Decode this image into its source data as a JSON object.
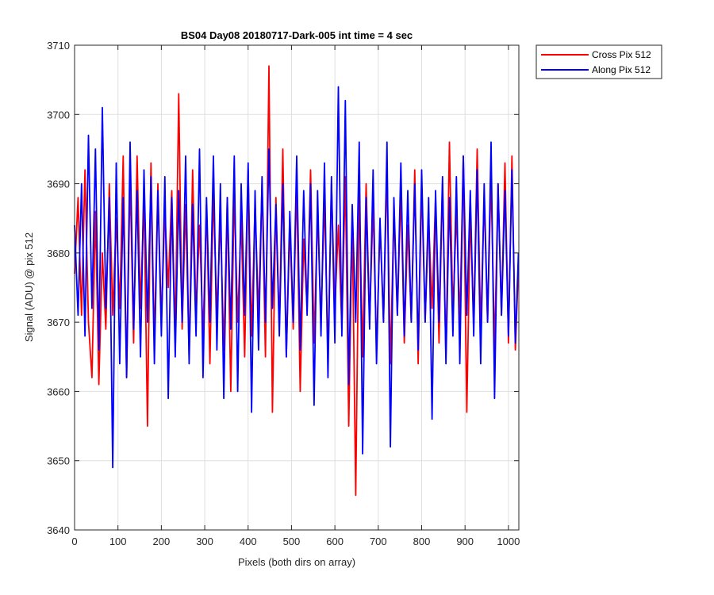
{
  "chart_data": {
    "type": "line",
    "title": "BS04 Day08 20180717-Dark-005 int time = 4 sec",
    "xlabel": "Pixels (both dirs on array)",
    "ylabel": "Signal (ADU) @ pix 512",
    "xlim": [
      0,
      1024
    ],
    "ylim": [
      3640,
      3710
    ],
    "xticks": [
      0,
      100,
      200,
      300,
      400,
      500,
      600,
      700,
      800,
      900,
      1000
    ],
    "yticks": [
      3640,
      3650,
      3660,
      3670,
      3680,
      3690,
      3700,
      3710
    ],
    "xtick_labels": [
      "0",
      "100",
      "200",
      "300",
      "400",
      "500",
      "600",
      "700",
      "800",
      "900",
      "1000"
    ],
    "ytick_labels": [
      "3640",
      "3650",
      "3660",
      "3670",
      "3680",
      "3690",
      "3700",
      "3710"
    ],
    "grid": true,
    "legend_position": "outside-top-right",
    "series": [
      {
        "name": "Cross Pix 512",
        "color": "#ff0000",
        "x": [
          0,
          8,
          16,
          24,
          32,
          40,
          48,
          56,
          64,
          72,
          80,
          88,
          96,
          104,
          112,
          120,
          128,
          136,
          144,
          152,
          160,
          168,
          176,
          184,
          192,
          200,
          208,
          216,
          224,
          232,
          240,
          248,
          256,
          264,
          272,
          280,
          288,
          296,
          304,
          312,
          320,
          328,
          336,
          344,
          352,
          360,
          368,
          376,
          384,
          392,
          400,
          408,
          416,
          424,
          432,
          440,
          448,
          456,
          464,
          472,
          480,
          488,
          496,
          504,
          512,
          520,
          528,
          536,
          544,
          552,
          560,
          568,
          576,
          584,
          592,
          600,
          608,
          616,
          624,
          632,
          640,
          648,
          656,
          664,
          672,
          680,
          688,
          696,
          704,
          712,
          720,
          728,
          736,
          744,
          752,
          760,
          768,
          776,
          784,
          792,
          800,
          808,
          816,
          824,
          832,
          840,
          848,
          856,
          864,
          872,
          880,
          888,
          896,
          904,
          912,
          920,
          928,
          936,
          944,
          952,
          960,
          968,
          976,
          984,
          992,
          1000,
          1008,
          1016,
          1023
        ],
        "y": [
          3677,
          3688,
          3671,
          3692,
          3670,
          3662,
          3686,
          3661,
          3680,
          3669,
          3690,
          3671,
          3685,
          3672,
          3694,
          3662,
          3691,
          3667,
          3694,
          3672,
          3688,
          3655,
          3693,
          3667,
          3690,
          3670,
          3686,
          3675,
          3689,
          3668,
          3703,
          3669,
          3687,
          3665,
          3692,
          3671,
          3684,
          3668,
          3687,
          3664,
          3689,
          3671,
          3685,
          3666,
          3688,
          3660,
          3689,
          3670,
          3685,
          3665,
          3692,
          3668,
          3687,
          3671,
          3690,
          3665,
          3707,
          3657,
          3688,
          3669,
          3695,
          3665,
          3684,
          3669,
          3690,
          3660,
          3682,
          3672,
          3692,
          3667,
          3686,
          3670,
          3688,
          3665,
          3690,
          3672,
          3684,
          3669,
          3691,
          3655,
          3685,
          3645,
          3689,
          3665,
          3690,
          3670,
          3687,
          3666,
          3684,
          3670,
          3692,
          3664,
          3686,
          3671,
          3689,
          3667,
          3684,
          3670,
          3692,
          3664,
          3690,
          3670,
          3685,
          3672,
          3688,
          3667,
          3690,
          3665,
          3696,
          3671,
          3686,
          3670,
          3694,
          3657,
          3686,
          3670,
          3695,
          3669,
          3688,
          3670,
          3691,
          3666,
          3690,
          3671,
          3693,
          3667,
          3694,
          3666,
          3678
        ]
      },
      {
        "name": "Along Pix 512",
        "color": "#0000ff",
        "x": [
          0,
          8,
          16,
          24,
          32,
          40,
          48,
          56,
          64,
          72,
          80,
          88,
          96,
          104,
          112,
          120,
          128,
          136,
          144,
          152,
          160,
          168,
          176,
          184,
          192,
          200,
          208,
          216,
          224,
          232,
          240,
          248,
          256,
          264,
          272,
          280,
          288,
          296,
          304,
          312,
          320,
          328,
          336,
          344,
          352,
          360,
          368,
          376,
          384,
          392,
          400,
          408,
          416,
          424,
          432,
          440,
          448,
          456,
          464,
          472,
          480,
          488,
          496,
          504,
          512,
          520,
          528,
          536,
          544,
          552,
          560,
          568,
          576,
          584,
          592,
          600,
          608,
          616,
          624,
          632,
          640,
          648,
          656,
          664,
          672,
          680,
          688,
          696,
          704,
          712,
          720,
          728,
          736,
          744,
          752,
          760,
          768,
          776,
          784,
          792,
          800,
          808,
          816,
          824,
          832,
          840,
          848,
          856,
          864,
          872,
          880,
          888,
          896,
          904,
          912,
          920,
          928,
          936,
          944,
          952,
          960,
          968,
          976,
          984,
          992,
          1000,
          1008,
          1016,
          1023
        ],
        "y": [
          3684,
          3671,
          3690,
          3668,
          3697,
          3672,
          3695,
          3666,
          3701,
          3672,
          3688,
          3649,
          3693,
          3664,
          3688,
          3662,
          3696,
          3669,
          3689,
          3665,
          3692,
          3670,
          3691,
          3664,
          3689,
          3668,
          3691,
          3659,
          3688,
          3665,
          3689,
          3670,
          3694,
          3664,
          3687,
          3668,
          3695,
          3662,
          3688,
          3670,
          3694,
          3666,
          3690,
          3659,
          3688,
          3669,
          3694,
          3660,
          3690,
          3671,
          3693,
          3657,
          3689,
          3666,
          3691,
          3670,
          3695,
          3672,
          3687,
          3668,
          3690,
          3665,
          3686,
          3670,
          3694,
          3666,
          3689,
          3671,
          3690,
          3658,
          3689,
          3668,
          3693,
          3662,
          3691,
          3667,
          3704,
          3668,
          3702,
          3661,
          3687,
          3670,
          3696,
          3651,
          3688,
          3669,
          3692,
          3664,
          3685,
          3670,
          3696,
          3652,
          3688,
          3671,
          3693,
          3668,
          3689,
          3670,
          3690,
          3666,
          3692,
          3670,
          3688,
          3656,
          3689,
          3670,
          3691,
          3664,
          3688,
          3668,
          3691,
          3664,
          3694,
          3671,
          3689,
          3668,
          3692,
          3664,
          3690,
          3670,
          3696,
          3659,
          3690,
          3671,
          3689,
          3668,
          3692,
          3667,
          3680
        ]
      }
    ]
  }
}
